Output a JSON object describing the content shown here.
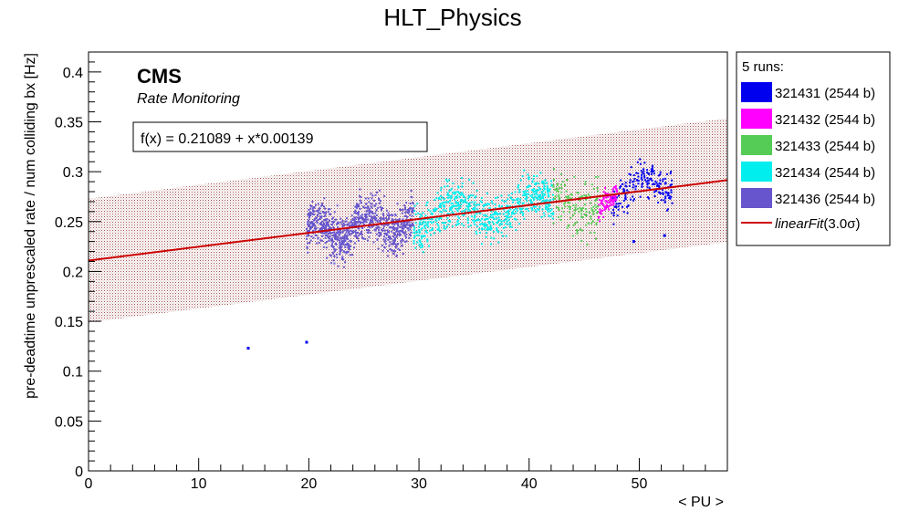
{
  "chart_data": {
    "type": "scatter",
    "title": "HLT_Physics",
    "xlabel": "< PU >",
    "ylabel": "pre-deadtime unprescaled rate / num colliding bx [Hz]",
    "xlim": [
      0,
      58
    ],
    "ylim": [
      0,
      0.42
    ],
    "x_ticks": [
      0,
      10,
      20,
      30,
      40,
      50
    ],
    "y_ticks": [
      "0",
      "0.05",
      "0.1",
      "0.15",
      "0.2",
      "0.25",
      "0.3",
      "0.35",
      "0.4"
    ],
    "grid": false,
    "watermark": {
      "experiment": "CMS",
      "subtitle": "Rate Monitoring"
    },
    "fit": {
      "label": "f(x) = 0.21089 + x*0.00139",
      "intercept": 0.21089,
      "slope": 0.00139,
      "band_sigma": 0.062,
      "color": "#cc0000",
      "band_color": "#a05050"
    },
    "legend": {
      "position": "right",
      "header": "5 runs:",
      "fit_entry_prefix": "linearFit",
      "fit_entry_suffix": "(3.0σ)"
    },
    "series": [
      {
        "name": "321431 (2544 b)",
        "color": "#0000ee",
        "x_range": [
          47.5,
          53
        ],
        "y_range": [
          0.24,
          0.33
        ],
        "count": 200,
        "outliers": [
          [
            14.5,
            0.123
          ],
          [
            19.8,
            0.129
          ],
          [
            52.3,
            0.236
          ],
          [
            49.5,
            0.23
          ]
        ]
      },
      {
        "name": "321432 (2544 b)",
        "color": "#ff00ff",
        "x_range": [
          46.3,
          48
        ],
        "y_range": [
          0.24,
          0.3
        ],
        "count": 90,
        "outliers": []
      },
      {
        "name": "321433 (2544 b)",
        "color": "#55cc55",
        "x_range": [
          42.2,
          46.3
        ],
        "y_range": [
          0.2,
          0.34
        ],
        "count": 160,
        "outliers": []
      },
      {
        "name": "321434 (2544 b)",
        "color": "#00eeee",
        "x_range": [
          29.5,
          42.2
        ],
        "y_range": [
          0.21,
          0.32
        ],
        "count": 700,
        "outliers": []
      },
      {
        "name": "321436 (2544 b)",
        "color": "#6655cc",
        "x_range": [
          19.8,
          29.5
        ],
        "y_range": [
          0.19,
          0.3
        ],
        "count": 900,
        "outliers": []
      }
    ]
  }
}
